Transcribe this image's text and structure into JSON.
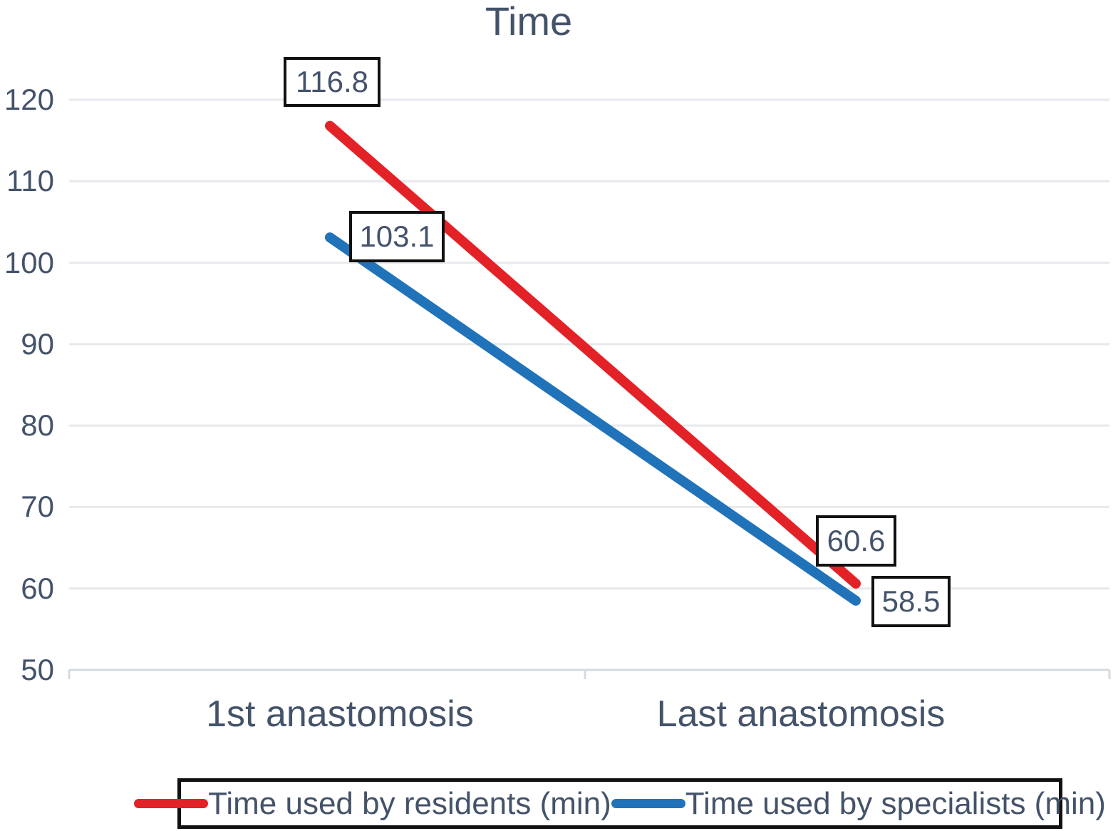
{
  "chart_data": {
    "type": "line",
    "title": "Time",
    "categories": [
      "1st anastomosis",
      "Last anastomosis"
    ],
    "series": [
      {
        "name": "Time used by residents (min)",
        "values": [
          116.8,
          60.6
        ],
        "color": "#e32228"
      },
      {
        "name": "Time used by specialists (min)",
        "values": [
          103.1,
          58.5
        ],
        "color": "#2173b9"
      }
    ],
    "ylim": [
      50,
      120
    ],
    "yticks": [
      120,
      110,
      100,
      90,
      80,
      70,
      60,
      50
    ],
    "grid": "horizontal",
    "legend_position": "bottom",
    "data_labels_boxed": true
  },
  "colors": {
    "text": "#44536a",
    "gridline": "#e7e9ed",
    "axis_line": "#d5d9e0",
    "label_box_border": "#111111",
    "background": "#ffffff"
  }
}
